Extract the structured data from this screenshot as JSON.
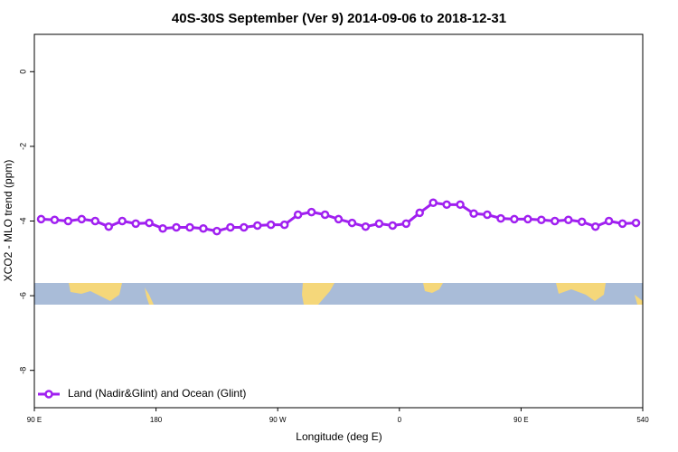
{
  "chart_data": {
    "type": "line",
    "title": "40S-30S September (Ver 9)   2014-09-06 to 2018-12-31",
    "x_label": "Longitude (deg E)",
    "y_label": "XCO2 - MLO trend (ppm)",
    "x": [
      95,
      105,
      115,
      125,
      135,
      145,
      155,
      165,
      175,
      185,
      195,
      205,
      215,
      225,
      235,
      245,
      255,
      265,
      275,
      285,
      295,
      305,
      315,
      325,
      335,
      345,
      355,
      365,
      375,
      385,
      395,
      405,
      415,
      425,
      435,
      445,
      455,
      465,
      475,
      485,
      495,
      505,
      515,
      525,
      535
    ],
    "series": [
      {
        "name": "Land (Nadir&Glint) and Ocean (Glint)",
        "color": "#a020f0",
        "values": [
          -3.95,
          -3.97,
          -4.0,
          -3.95,
          -4.0,
          -4.15,
          -4.0,
          -4.07,
          -4.05,
          -4.2,
          -4.17,
          -4.17,
          -4.2,
          -4.27,
          -4.17,
          -4.17,
          -4.12,
          -4.1,
          -4.1,
          -3.83,
          -3.76,
          -3.83,
          -3.95,
          -4.05,
          -4.15,
          -4.07,
          -4.12,
          -4.07,
          -3.78,
          -3.51,
          -3.56,
          -3.56,
          -3.8,
          -3.83,
          -3.93,
          -3.95,
          -3.95,
          -3.97,
          -4.0,
          -3.97,
          -4.02,
          -4.15,
          -4.0,
          -4.07,
          -4.05
        ]
      }
    ],
    "xlim": [
      90,
      540
    ],
    "xticks": [
      {
        "value": 90,
        "label": "90 E"
      },
      180,
      {
        "value": 270,
        "label": "90 W"
      },
      {
        "value": 360,
        "label": "0"
      },
      {
        "value": 450,
        "label": "90 E"
      },
      540
    ],
    "ylim": [
      -9,
      1
    ],
    "yticks": [
      -8,
      -6,
      -4,
      -2,
      0
    ],
    "legend": "bottom-left"
  }
}
